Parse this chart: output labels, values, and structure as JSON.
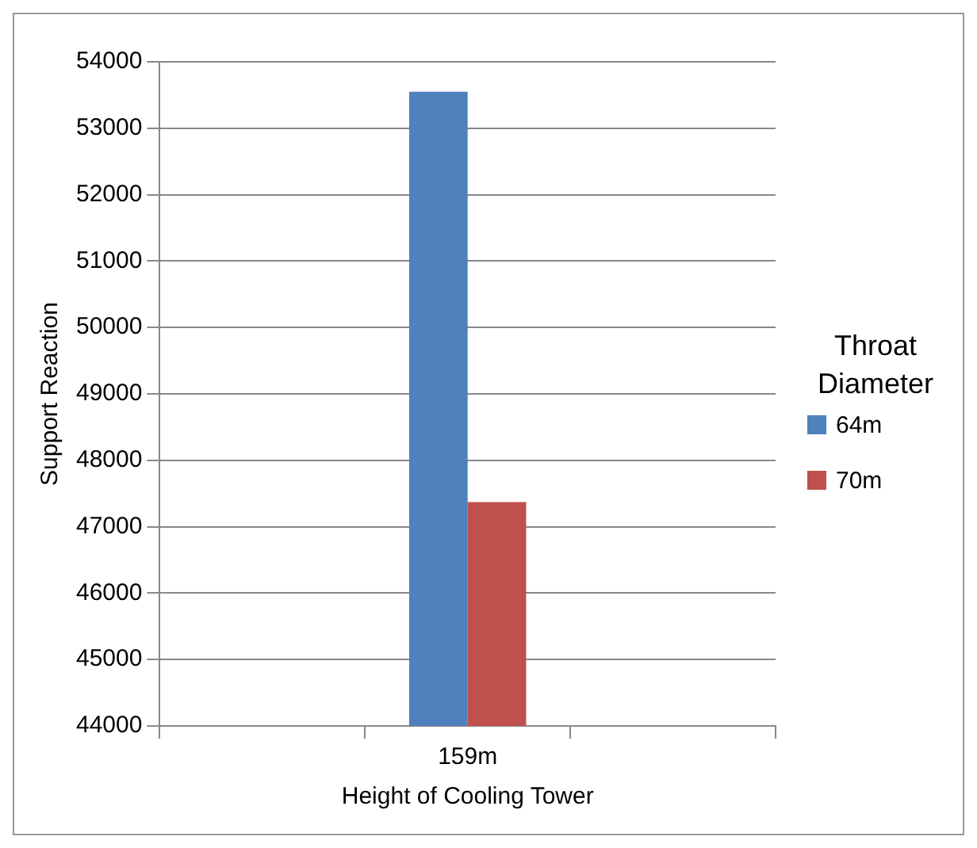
{
  "chart_data": {
    "type": "bar",
    "xlabel": "Height of Cooling Tower",
    "ylabel": "Support Reaction",
    "legend_title": "Throat Diameter",
    "categories": [
      null,
      "159m",
      null
    ],
    "series": [
      {
        "name": "64m",
        "color": "#4f81bd",
        "values": [
          null,
          53550,
          null
        ]
      },
      {
        "name": "70m",
        "color": "#c0504d",
        "values": [
          null,
          47370,
          null
        ]
      }
    ],
    "ylim": [
      44000,
      54000
    ],
    "yticks": [
      44000,
      45000,
      46000,
      47000,
      48000,
      49000,
      50000,
      51000,
      52000,
      53000,
      54000
    ],
    "grid": "y",
    "legend": "right"
  }
}
